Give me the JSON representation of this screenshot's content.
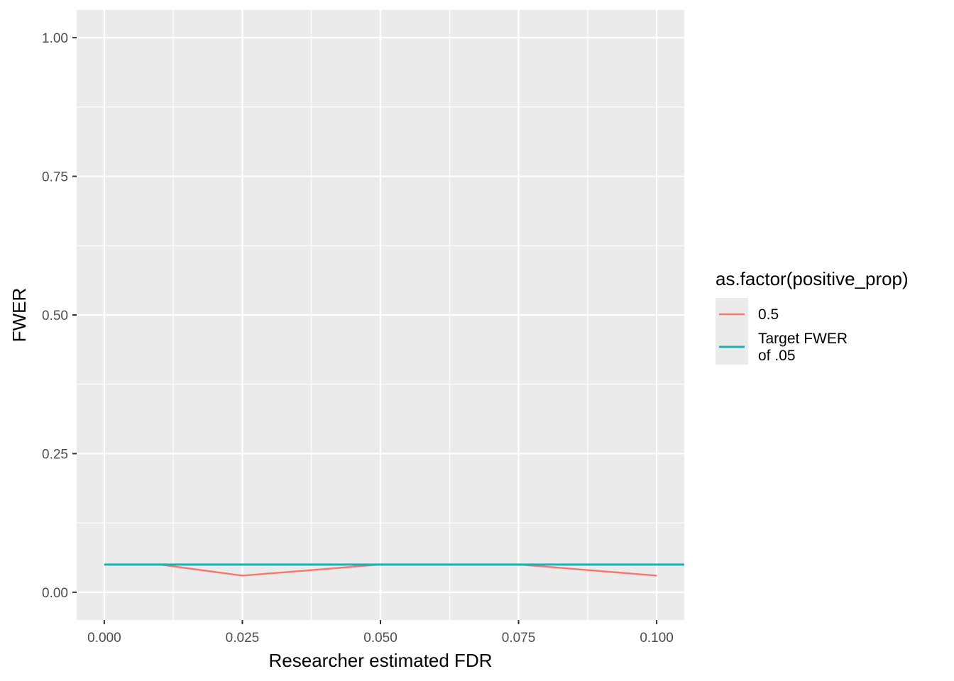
{
  "chart_data": {
    "type": "line",
    "xlabel": "Researcher estimated FDR",
    "ylabel": "FWER",
    "xlim": [
      -0.005,
      0.105
    ],
    "ylim": [
      -0.05,
      1.05
    ],
    "x_ticks": [
      0.0,
      0.025,
      0.05,
      0.075,
      0.1
    ],
    "x_tick_labels": [
      "0.000",
      "0.025",
      "0.050",
      "0.075",
      "0.100"
    ],
    "y_ticks": [
      0.0,
      0.25,
      0.5,
      0.75,
      1.0
    ],
    "y_tick_labels": [
      "0.00",
      "0.25",
      "0.50",
      "0.75",
      "1.00"
    ],
    "grid": true,
    "legend": {
      "position": "right",
      "title": "as.factor(positive_prop)"
    },
    "series": [
      {
        "name": "0.5",
        "color": "#F8766D",
        "x": [
          0.01,
          0.025,
          0.05,
          0.075,
          0.1
        ],
        "y": [
          0.05,
          0.03,
          0.05,
          0.05,
          0.03
        ]
      },
      {
        "name": "Target FWER of .05",
        "legend_lines": [
          "Target FWER",
          "of .05"
        ],
        "color": "#1FB0B6",
        "x": [
          0.0,
          0.105
        ],
        "y": [
          0.05,
          0.05
        ]
      }
    ]
  }
}
